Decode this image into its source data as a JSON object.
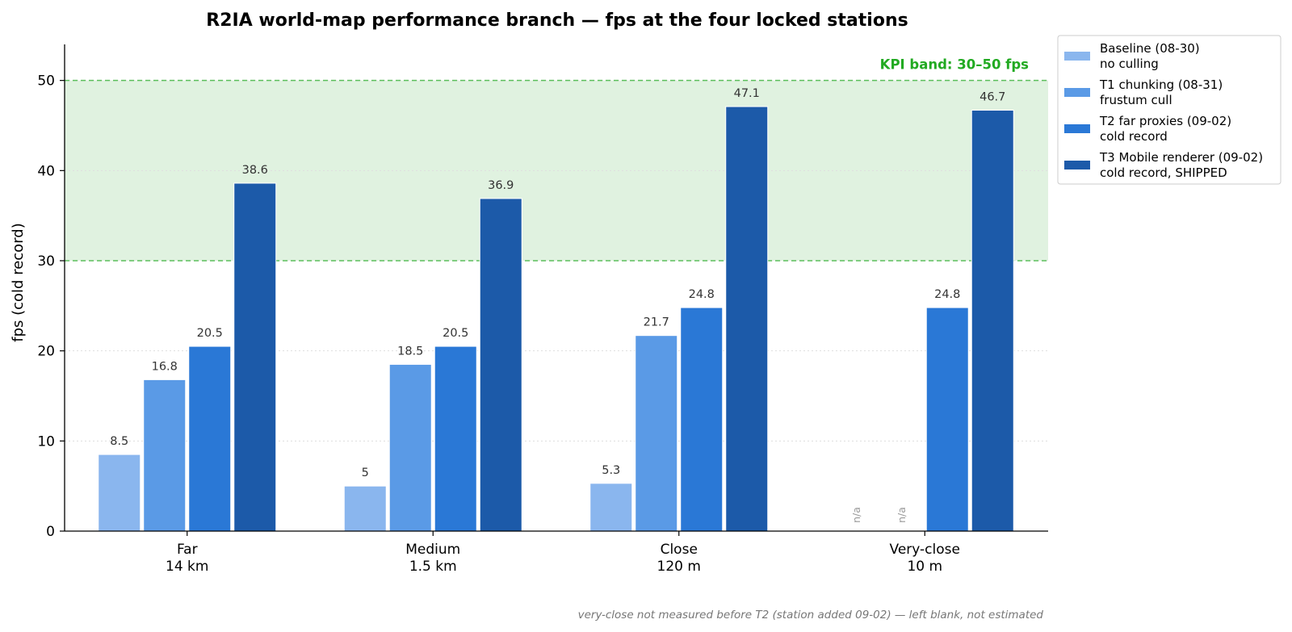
{
  "chart_data": {
    "type": "bar",
    "title": "R2IA world-map performance branch — fps at the four locked stations",
    "ylabel": "fps (cold record)",
    "xlabel": "",
    "ylim": [
      0,
      54
    ],
    "yticks": [
      0,
      10,
      20,
      30,
      40,
      50
    ],
    "grid": "y dotted",
    "legend_position": "outside top-right",
    "categories": [
      {
        "name": "Far",
        "distance": "14 km"
      },
      {
        "name": "Medium",
        "distance": "1.5 km"
      },
      {
        "name": "Close",
        "distance": "120 m"
      },
      {
        "name": "Very-close",
        "distance": "10 m"
      }
    ],
    "series": [
      {
        "name": "Baseline (08-30)",
        "note": "no culling",
        "color": "#8ab6ee",
        "values": [
          8.5,
          5,
          5.3,
          null
        ],
        "labels": [
          "8.5",
          "5",
          "5.3",
          "n/a"
        ]
      },
      {
        "name": "T1 chunking (08-31)",
        "note": "frustum cull",
        "color": "#5a9ae6",
        "values": [
          16.8,
          18.5,
          21.7,
          null
        ],
        "labels": [
          "16.8",
          "18.5",
          "21.7",
          "n/a"
        ]
      },
      {
        "name": "T2 far proxies (09-02)",
        "note": "cold record",
        "color": "#2a78d6",
        "values": [
          20.5,
          20.5,
          24.8,
          24.8
        ],
        "labels": [
          "20.5",
          "20.5",
          "24.8",
          "24.8"
        ]
      },
      {
        "name": "T3 Mobile renderer (09-02)",
        "note": "cold record, SHIPPED",
        "color": "#1c5aa9",
        "values": [
          38.6,
          36.9,
          47.1,
          46.7
        ],
        "labels": [
          "38.6",
          "36.9",
          "47.1",
          "46.7"
        ]
      }
    ],
    "kpi_band": {
      "label": "KPI band: 30–50 fps",
      "low": 30,
      "high": 50,
      "color": "#22aa22",
      "fill": "#e0f2e0"
    },
    "footnote": "very-close not measured before T2 (station added 09-02) — left blank, not estimated"
  }
}
